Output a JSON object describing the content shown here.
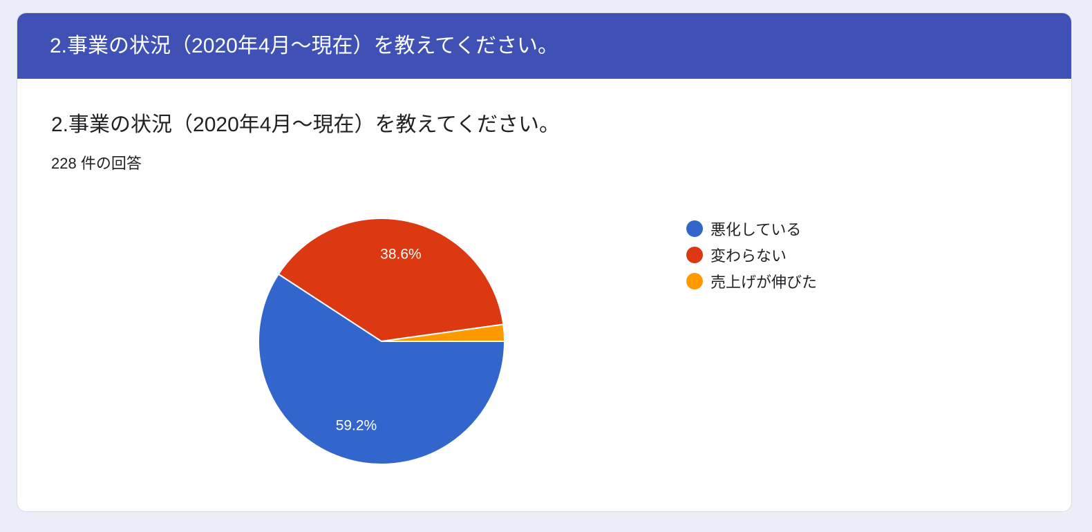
{
  "header": {
    "title": "2.事業の状況（2020年4月〜現在）を教えてください。"
  },
  "question": {
    "title": "2.事業の状況（2020年4月〜現在）を教えてください。",
    "response_count": "228 件の回答"
  },
  "chart_data": {
    "type": "pie",
    "title": "2.事業の状況（2020年4月〜現在）を教えてください。",
    "legend_position": "right",
    "slices": [
      {
        "label": "悪化している",
        "value": 59.2,
        "display": "59.2%",
        "color": "#3366cc"
      },
      {
        "label": "変わらない",
        "value": 38.6,
        "display": "38.6%",
        "color": "#dc3912"
      },
      {
        "label": "売上げが伸びた",
        "value": 2.2,
        "display": "",
        "color": "#ff9900"
      }
    ]
  }
}
